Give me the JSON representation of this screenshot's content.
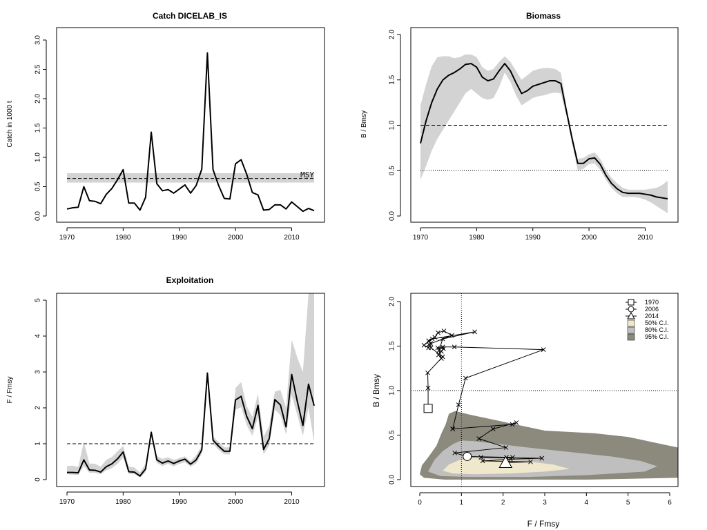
{
  "colors": {
    "band": "#d3d3d3",
    "line": "#000000",
    "ci50": "#f0e8cc",
    "ci80": "#bfbfbf",
    "ci95": "#8c8a7c"
  },
  "chart_data": [
    {
      "id": "catch",
      "type": "line",
      "title": "Catch DICELAB_IS",
      "xlabel": "",
      "ylabel": "Catch in 1000 t",
      "xlim": [
        1970,
        2014
      ],
      "ylim": [
        0,
        3.0
      ],
      "xticks": [
        "1970",
        "1980",
        "1990",
        "2000",
        "2010"
      ],
      "yticks": [
        "0.0",
        "0.5",
        "1.0",
        "1.5",
        "2.0",
        "2.5",
        "3.0"
      ],
      "x": [
        1970,
        1971,
        1972,
        1973,
        1974,
        1975,
        1976,
        1977,
        1978,
        1979,
        1980,
        1981,
        1982,
        1983,
        1984,
        1985,
        1986,
        1987,
        1988,
        1989,
        1990,
        1991,
        1992,
        1993,
        1994,
        1995,
        1996,
        1997,
        1998,
        1999,
        2000,
        2001,
        2002,
        2003,
        2004,
        2005,
        2006,
        2007,
        2008,
        2009,
        2010,
        2011,
        2012,
        2013,
        2014
      ],
      "y": [
        0.12,
        0.14,
        0.15,
        0.5,
        0.26,
        0.25,
        0.21,
        0.37,
        0.47,
        0.62,
        0.79,
        0.22,
        0.22,
        0.1,
        0.32,
        1.43,
        0.55,
        0.43,
        0.45,
        0.39,
        0.46,
        0.53,
        0.39,
        0.52,
        0.8,
        2.78,
        0.79,
        0.52,
        0.3,
        0.29,
        0.89,
        0.96,
        0.71,
        0.4,
        0.36,
        0.1,
        0.11,
        0.19,
        0.19,
        0.12,
        0.24,
        0.16,
        0.08,
        0.13,
        0.09
      ],
      "msy": 0.64,
      "msy_band": [
        0.57,
        0.73
      ],
      "msy_label": "MSY"
    },
    {
      "id": "biomass",
      "type": "line",
      "title": "Biomass",
      "xlabel": "",
      "ylabel": "B / Bmsy",
      "xlim": [
        1970,
        2014
      ],
      "ylim": [
        0,
        2.0
      ],
      "xticks": [
        "1970",
        "1980",
        "1990",
        "2000",
        "2010"
      ],
      "yticks": [
        "0.0",
        "0.5",
        "1.0",
        "1.5",
        "2.0"
      ],
      "x": [
        1970,
        1971,
        1972,
        1973,
        1974,
        1975,
        1976,
        1977,
        1978,
        1979,
        1980,
        1981,
        1982,
        1983,
        1984,
        1985,
        1986,
        1987,
        1988,
        1989,
        1990,
        1991,
        1992,
        1993,
        1994,
        1995,
        1996,
        1997,
        1998,
        1999,
        2000,
        2001,
        2002,
        2003,
        2004,
        2005,
        2006,
        2007,
        2008,
        2009,
        2010,
        2011,
        2012,
        2013,
        2014
      ],
      "y": [
        0.8,
        1.05,
        1.25,
        1.4,
        1.5,
        1.55,
        1.58,
        1.62,
        1.67,
        1.68,
        1.64,
        1.53,
        1.49,
        1.51,
        1.6,
        1.68,
        1.6,
        1.47,
        1.35,
        1.38,
        1.43,
        1.45,
        1.47,
        1.49,
        1.49,
        1.46,
        1.15,
        0.85,
        0.58,
        0.58,
        0.63,
        0.64,
        0.57,
        0.45,
        0.36,
        0.3,
        0.26,
        0.25,
        0.25,
        0.25,
        0.24,
        0.23,
        0.21,
        0.2,
        0.19
      ],
      "upper": [
        1.22,
        1.45,
        1.65,
        1.75,
        1.76,
        1.76,
        1.74,
        1.75,
        1.78,
        1.78,
        1.75,
        1.64,
        1.6,
        1.62,
        1.7,
        1.76,
        1.7,
        1.6,
        1.5,
        1.55,
        1.6,
        1.62,
        1.63,
        1.63,
        1.62,
        1.58,
        1.2,
        0.9,
        0.63,
        0.64,
        0.68,
        0.7,
        0.63,
        0.51,
        0.42,
        0.36,
        0.31,
        0.29,
        0.29,
        0.29,
        0.29,
        0.3,
        0.31,
        0.34,
        0.39
      ],
      "lower": [
        0.4,
        0.55,
        0.72,
        0.85,
        0.95,
        1.05,
        1.15,
        1.25,
        1.35,
        1.4,
        1.35,
        1.3,
        1.28,
        1.3,
        1.42,
        1.58,
        1.48,
        1.33,
        1.22,
        1.26,
        1.3,
        1.32,
        1.33,
        1.35,
        1.36,
        1.35,
        1.1,
        0.8,
        0.5,
        0.52,
        0.57,
        0.58,
        0.51,
        0.4,
        0.31,
        0.25,
        0.21,
        0.21,
        0.21,
        0.2,
        0.18,
        0.15,
        0.11,
        0.07,
        0.03
      ],
      "hline_dashed": 1.0,
      "hline_dotted": 0.5
    },
    {
      "id": "exploitation",
      "type": "line",
      "title": "Exploitation",
      "xlabel": "",
      "ylabel": "F / Fmsy",
      "xlim": [
        1970,
        2014
      ],
      "ylim": [
        0,
        5
      ],
      "xticks": [
        "1970",
        "1980",
        "1990",
        "2000",
        "2010"
      ],
      "yticks": [
        "0",
        "1",
        "2",
        "3",
        "4",
        "5"
      ],
      "x": [
        1970,
        1971,
        1972,
        1973,
        1974,
        1975,
        1976,
        1977,
        1978,
        1979,
        1980,
        1981,
        1982,
        1983,
        1984,
        1985,
        1986,
        1987,
        1988,
        1989,
        1990,
        1991,
        1992,
        1993,
        1994,
        1995,
        1996,
        1997,
        1998,
        1999,
        2000,
        2001,
        2002,
        2003,
        2004,
        2005,
        2006,
        2007,
        2008,
        2009,
        2010,
        2011,
        2012,
        2013,
        2014
      ],
      "y": [
        0.2,
        0.2,
        0.19,
        0.55,
        0.27,
        0.26,
        0.21,
        0.36,
        0.44,
        0.58,
        0.77,
        0.22,
        0.21,
        0.1,
        0.3,
        1.32,
        0.55,
        0.46,
        0.52,
        0.45,
        0.52,
        0.57,
        0.43,
        0.55,
        0.83,
        2.97,
        1.1,
        0.93,
        0.79,
        0.79,
        2.22,
        2.32,
        1.76,
        1.42,
        2.07,
        0.84,
        1.14,
        2.23,
        2.08,
        1.47,
        2.93,
        2.18,
        1.51,
        2.66,
        2.06
      ],
      "upper": [
        0.38,
        0.39,
        0.35,
        1.05,
        0.45,
        0.44,
        0.36,
        0.55,
        0.63,
        0.79,
        0.94,
        0.36,
        0.34,
        0.2,
        0.45,
        1.38,
        0.65,
        0.58,
        0.62,
        0.55,
        0.6,
        0.65,
        0.51,
        0.68,
        0.95,
        3.0,
        1.2,
        1.05,
        0.9,
        0.9,
        2.55,
        2.72,
        2.05,
        1.75,
        2.4,
        1.2,
        1.5,
        2.45,
        2.5,
        2.0,
        3.9,
        3.4,
        3.0,
        5.2,
        5.2
      ],
      "lower": [
        0.15,
        0.14,
        0.13,
        0.38,
        0.19,
        0.19,
        0.15,
        0.26,
        0.32,
        0.44,
        0.62,
        0.16,
        0.15,
        0.06,
        0.21,
        1.2,
        0.46,
        0.38,
        0.44,
        0.37,
        0.44,
        0.48,
        0.36,
        0.45,
        0.72,
        2.95,
        1.0,
        0.83,
        0.71,
        0.7,
        1.95,
        2.02,
        1.52,
        1.22,
        1.75,
        0.7,
        0.95,
        1.95,
        1.8,
        1.25,
        2.35,
        1.8,
        1.22,
        2.0,
        1.05
      ],
      "hline_dashed": 1.0
    },
    {
      "id": "kobe",
      "type": "scatter",
      "title": "",
      "xlabel": "F / Fmsy",
      "ylabel": "B / Bmsy",
      "xlim": [
        0,
        6
      ],
      "ylim": [
        0,
        2.0
      ],
      "xticks": [
        "0",
        "1",
        "2",
        "3",
        "4",
        "5",
        "6"
      ],
      "yticks": [
        "0.0",
        "0.5",
        "1.0",
        "1.5",
        "2.0"
      ],
      "trajectory": [
        [
          0.2,
          0.8
        ],
        [
          0.2,
          1.03
        ],
        [
          0.19,
          1.2
        ],
        [
          0.55,
          1.38
        ],
        [
          0.27,
          1.48
        ],
        [
          0.26,
          1.53
        ],
        [
          0.21,
          1.56
        ],
        [
          0.36,
          1.6
        ],
        [
          0.44,
          1.65
        ],
        [
          0.58,
          1.67
        ],
        [
          0.77,
          1.62
        ],
        [
          0.22,
          1.52
        ],
        [
          0.21,
          1.48
        ],
        [
          0.1,
          1.51
        ],
        [
          0.3,
          1.58
        ],
        [
          1.32,
          1.66
        ],
        [
          0.55,
          1.58
        ],
        [
          0.46,
          1.45
        ],
        [
          0.52,
          1.36
        ],
        [
          0.45,
          1.4
        ],
        [
          0.52,
          1.44
        ],
        [
          0.57,
          1.47
        ],
        [
          0.43,
          1.48
        ],
        [
          0.55,
          1.49
        ],
        [
          0.83,
          1.49
        ],
        [
          2.97,
          1.46
        ],
        [
          1.1,
          1.14
        ],
        [
          0.93,
          0.84
        ],
        [
          0.79,
          0.57
        ],
        [
          0.79,
          0.57
        ],
        [
          2.22,
          0.62
        ],
        [
          2.32,
          0.64
        ],
        [
          1.76,
          0.57
        ],
        [
          1.42,
          0.46
        ],
        [
          2.07,
          0.36
        ],
        [
          0.84,
          0.3
        ],
        [
          1.14,
          0.26
        ],
        [
          2.23,
          0.25
        ],
        [
          2.08,
          0.25
        ],
        [
          1.47,
          0.25
        ],
        [
          2.93,
          0.24
        ],
        [
          2.18,
          0.23
        ],
        [
          1.51,
          0.21
        ],
        [
          2.66,
          0.2
        ],
        [
          2.06,
          0.19
        ]
      ],
      "hline_dotted": 1.0,
      "vline_dotted": 1.0,
      "markers": [
        {
          "label": "1970",
          "shape": "square",
          "F": 0.2,
          "B": 0.8
        },
        {
          "label": "2006",
          "shape": "circle",
          "F": 1.14,
          "B": 0.26
        },
        {
          "label": "2014",
          "shape": "triangle",
          "F": 2.06,
          "B": 0.19
        }
      ],
      "ci_labels": [
        "50% C.I.",
        "80% C.I.",
        "95% C.I."
      ],
      "ci95_polygon": [
        [
          0.0,
          0.06
        ],
        [
          0.1,
          0.02
        ],
        [
          0.6,
          0.0
        ],
        [
          2.0,
          0.0
        ],
        [
          4.0,
          0.0
        ],
        [
          6.2,
          0.02
        ],
        [
          6.2,
          0.36
        ],
        [
          5.6,
          0.42
        ],
        [
          5.0,
          0.48
        ],
        [
          4.2,
          0.52
        ],
        [
          3.0,
          0.55
        ],
        [
          2.3,
          0.62
        ],
        [
          1.7,
          0.68
        ],
        [
          1.2,
          0.73
        ],
        [
          0.85,
          0.77
        ],
        [
          0.7,
          0.74
        ],
        [
          0.62,
          0.62
        ],
        [
          0.52,
          0.52
        ],
        [
          0.4,
          0.38
        ],
        [
          0.2,
          0.25
        ],
        [
          0.05,
          0.16
        ]
      ],
      "ci80_polygon": [
        [
          0.2,
          0.09
        ],
        [
          0.5,
          0.04
        ],
        [
          1.2,
          0.03
        ],
        [
          2.6,
          0.03
        ],
        [
          4.0,
          0.05
        ],
        [
          5.4,
          0.09
        ],
        [
          5.7,
          0.15
        ],
        [
          5.3,
          0.21
        ],
        [
          4.6,
          0.26
        ],
        [
          3.6,
          0.31
        ],
        [
          2.6,
          0.36
        ],
        [
          1.9,
          0.4
        ],
        [
          1.35,
          0.43
        ],
        [
          1.0,
          0.44
        ],
        [
          0.8,
          0.4
        ],
        [
          0.55,
          0.32
        ],
        [
          0.35,
          0.22
        ]
      ],
      "ci50_polygon": [
        [
          0.55,
          0.1
        ],
        [
          0.8,
          0.07
        ],
        [
          1.3,
          0.06
        ],
        [
          2.2,
          0.07
        ],
        [
          3.0,
          0.09
        ],
        [
          3.6,
          0.12
        ],
        [
          3.2,
          0.17
        ],
        [
          2.5,
          0.21
        ],
        [
          1.8,
          0.23
        ],
        [
          1.3,
          0.24
        ],
        [
          0.95,
          0.22
        ],
        [
          0.7,
          0.17
        ]
      ]
    }
  ]
}
